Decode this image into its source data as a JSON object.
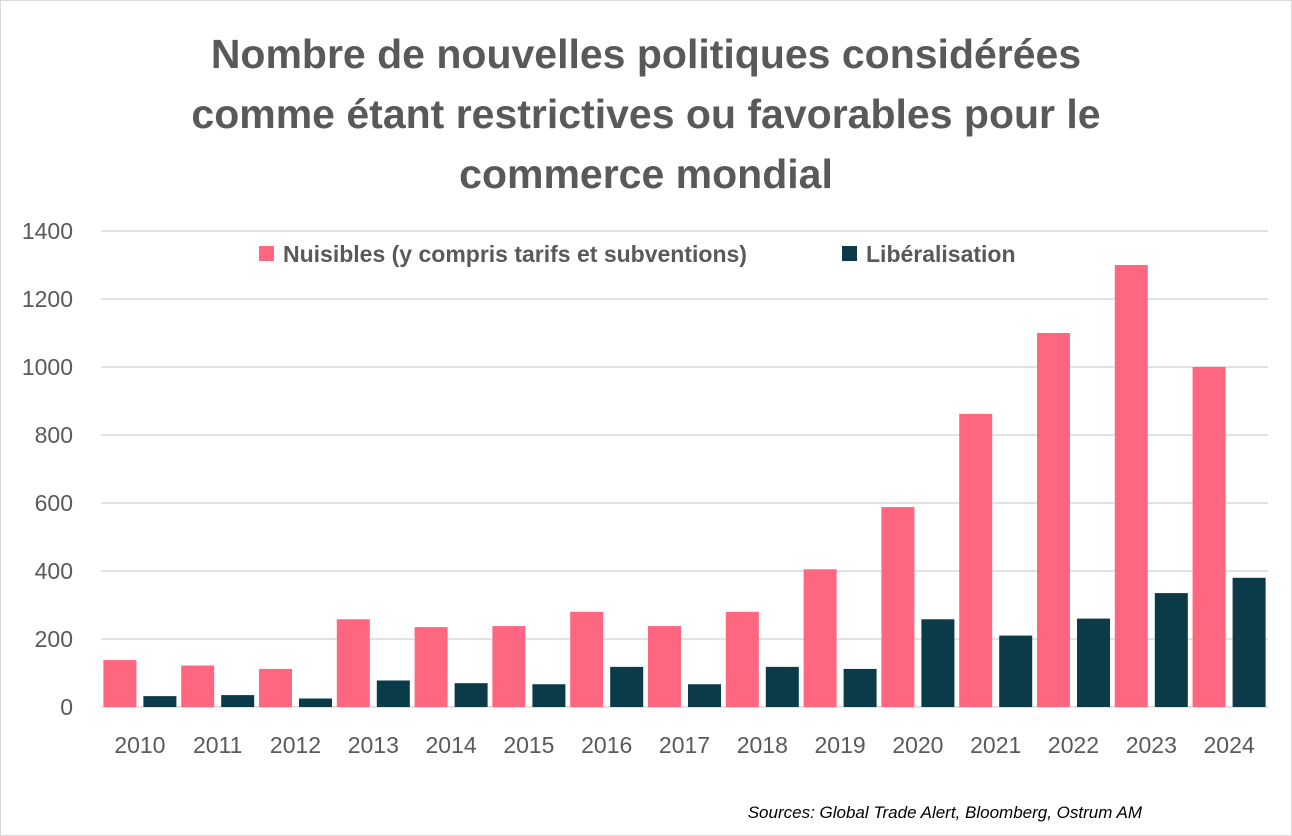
{
  "title_lines": [
    "Nombre de nouvelles politiques considérées",
    "comme étant restrictives ou favorables pour le",
    "commerce mondial"
  ],
  "source": "Sources: Global Trade Alert, Bloomberg, Ostrum AM",
  "colors": {
    "harmful": "#ff6680",
    "liberal": "#0b3b48",
    "grid": "#d9d9d9",
    "text": "#595959"
  },
  "chart_data": {
    "type": "bar",
    "title": "Nombre de nouvelles politiques considérées comme étant restrictives ou favorables pour le commerce mondial",
    "categories": [
      "2010",
      "2011",
      "2012",
      "2013",
      "2014",
      "2015",
      "2016",
      "2017",
      "2018",
      "2019",
      "2020",
      "2021",
      "2022",
      "2023",
      "2024"
    ],
    "series": [
      {
        "name": "Nuisibles (y compris tarifs et subventions)",
        "color": "#ff6680",
        "values": [
          138,
          122,
          112,
          258,
          235,
          238,
          280,
          238,
          280,
          405,
          588,
          862,
          1100,
          1300,
          1000
        ]
      },
      {
        "name": "Libéralisation",
        "color": "#0b3b48",
        "values": [
          32,
          35,
          25,
          78,
          70,
          67,
          118,
          67,
          118,
          112,
          258,
          210,
          260,
          335,
          380
        ]
      }
    ],
    "ylim": [
      0,
      1400
    ],
    "yticks": [
      0,
      200,
      400,
      600,
      800,
      1000,
      1200,
      1400
    ],
    "xlabel": "",
    "ylabel": "",
    "legend_position": "top"
  }
}
